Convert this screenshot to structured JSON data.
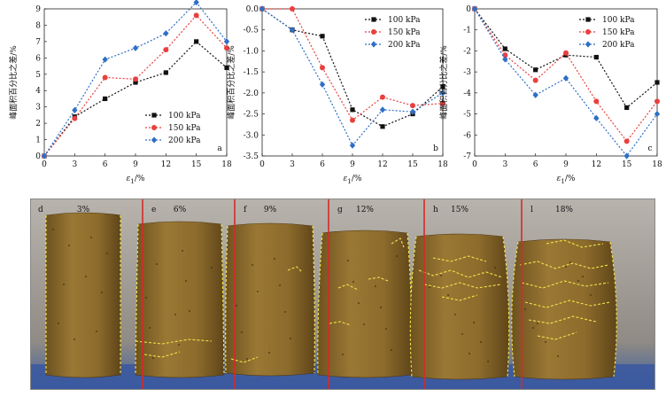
{
  "chart_data": [
    {
      "type": "line",
      "panel": "a",
      "ylabel": "峰面积百分比之差/%",
      "xlabel_main": "ε",
      "xlabel_sub": "1",
      "xlabel_unit": "/%",
      "x": [
        0,
        3,
        6,
        9,
        12,
        15,
        18
      ],
      "xlim": [
        0,
        18
      ],
      "ylim": [
        0,
        9
      ],
      "yticks": [
        0,
        1,
        2,
        3,
        4,
        5,
        6,
        7,
        8,
        9
      ],
      "legend_position": "bottom-right",
      "series": [
        {
          "name": "100 kPa",
          "color": "#111111",
          "marker": "square",
          "values": [
            0,
            2.4,
            3.5,
            4.5,
            5.1,
            7.0,
            5.4
          ]
        },
        {
          "name": "150 kPa",
          "color": "#e8403f",
          "marker": "circle",
          "values": [
            0,
            2.3,
            4.8,
            4.7,
            6.5,
            8.6,
            6.6
          ]
        },
        {
          "name": "200 kPa",
          "color": "#2f6fc4",
          "marker": "diamond",
          "values": [
            0,
            2.8,
            5.9,
            6.6,
            7.5,
            9.4,
            7.0
          ]
        }
      ]
    },
    {
      "type": "line",
      "panel": "b",
      "ylabel": "峰面积百分比之差/%",
      "xlabel_main": "ε",
      "xlabel_sub": "1",
      "xlabel_unit": "/%",
      "x": [
        0,
        3,
        6,
        9,
        12,
        15,
        18
      ],
      "xlim": [
        0,
        18
      ],
      "ylim": [
        -3.5,
        0
      ],
      "yticks": [
        0,
        -0.5,
        -1.0,
        -1.5,
        -2.0,
        -2.5,
        -3.0,
        -3.5
      ],
      "legend_position": "top-right",
      "series": [
        {
          "name": "100 kPa",
          "color": "#111111",
          "marker": "square",
          "values": [
            0,
            -0.5,
            -0.65,
            -2.4,
            -2.8,
            -2.5,
            -1.85
          ]
        },
        {
          "name": "150 kPa",
          "color": "#e8403f",
          "marker": "circle",
          "values": [
            0,
            0,
            -1.4,
            -2.65,
            -2.1,
            -2.3,
            -2.25
          ]
        },
        {
          "name": "200 kPa",
          "color": "#2f6fc4",
          "marker": "diamond",
          "values": [
            0,
            -0.5,
            -1.8,
            -3.25,
            -2.4,
            -2.45,
            -2.0
          ]
        }
      ]
    },
    {
      "type": "line",
      "panel": "c",
      "ylabel": "峰面积百分比之差/%",
      "xlabel_main": "ε",
      "xlabel_sub": "1",
      "xlabel_unit": "/%",
      "x": [
        0,
        3,
        6,
        9,
        12,
        15,
        18
      ],
      "xlim": [
        0,
        18
      ],
      "ylim": [
        -7,
        0
      ],
      "yticks": [
        0,
        -1,
        -2,
        -3,
        -4,
        -5,
        -6,
        -7
      ],
      "legend_position": "top-right",
      "series": [
        {
          "name": "100 kPa",
          "color": "#111111",
          "marker": "square",
          "values": [
            0,
            -1.9,
            -2.9,
            -2.2,
            -2.3,
            -4.7,
            -3.5
          ]
        },
        {
          "name": "150 kPa",
          "color": "#e8403f",
          "marker": "circle",
          "values": [
            0,
            -2.2,
            -3.4,
            -2.1,
            -4.4,
            -6.3,
            -4.4
          ]
        },
        {
          "name": "200 kPa",
          "color": "#2f6fc4",
          "marker": "diamond",
          "values": [
            0,
            -2.4,
            -4.1,
            -3.3,
            -5.2,
            -7.0,
            -5.0
          ]
        }
      ]
    }
  ],
  "photo": {
    "background": "#9e9a92",
    "specimen_color": "#8b6a2c",
    "divider_color": "#d42a2a",
    "crack_color": "#f2e34a",
    "specimens": [
      {
        "letter": "d",
        "strain": "3%"
      },
      {
        "letter": "e",
        "strain": "6%"
      },
      {
        "letter": "f",
        "strain": "9%"
      },
      {
        "letter": "g",
        "strain": "12%"
      },
      {
        "letter": "h",
        "strain": "15%"
      },
      {
        "letter": "l",
        "strain": "18%"
      }
    ]
  }
}
